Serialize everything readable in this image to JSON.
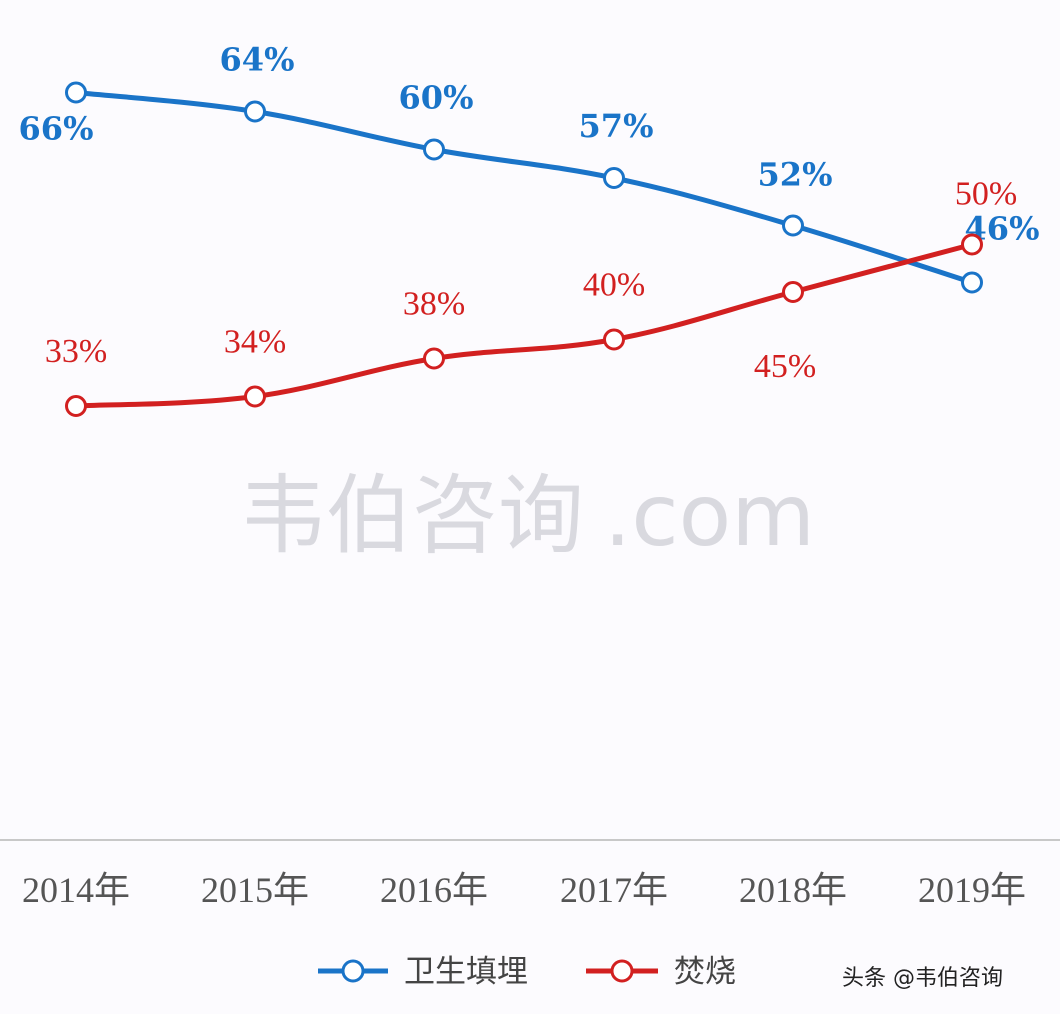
{
  "colors": {
    "landfill": "#1a74c8",
    "incineration": "#d22020",
    "background": "#fcfbfe",
    "axis": "#c8c8c8",
    "tick_text": "#555555"
  },
  "chart_data": {
    "type": "line",
    "categories": [
      "2014年",
      "2015年",
      "2016年",
      "2017年",
      "2018年",
      "2019年"
    ],
    "series": [
      {
        "name": "卫生填埋",
        "values": [
          66,
          64,
          60,
          57,
          52,
          46
        ],
        "labels": [
          "66%",
          "64%",
          "60%",
          "57%",
          "52%",
          "46%"
        ]
      },
      {
        "name": "焚烧",
        "values": [
          33,
          34,
          38,
          40,
          45,
          50
        ],
        "labels": [
          "33%",
          "34%",
          "38%",
          "40%",
          "45%",
          "50%"
        ]
      }
    ],
    "legend_position": "bottom",
    "grid": false
  },
  "watermark": {
    "text": "韦伯咨询",
    "suffix": ".com"
  },
  "credit": "头条 @韦伯咨询"
}
